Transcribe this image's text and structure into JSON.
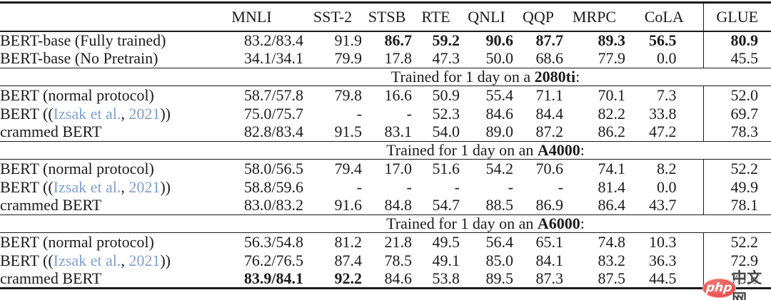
{
  "colors": {
    "text": "#1b1b1b",
    "rule": "#1a1a1a",
    "citation_link": "#7e9fd0",
    "watermark_red": "#e84f4e",
    "watermark_gray": "#454545"
  },
  "table": {
    "columns": [
      "",
      "MNLI",
      "SST-2",
      "STSB",
      "RTE",
      "QNLI",
      "QQP",
      "MRPC",
      "CoLA",
      "GLUE"
    ],
    "sections": [
      {
        "header": null,
        "rows": [
          {
            "label": "BERT-base (Fully trained)",
            "values": [
              "83.2/83.4",
              "91.9",
              "86.7",
              "59.2",
              "90.6",
              "87.7",
              "89.3",
              "56.5",
              "80.9"
            ],
            "bold": [
              2,
              3,
              4,
              5,
              6,
              7,
              8
            ]
          },
          {
            "label": "BERT-base (No Pretrain)",
            "values": [
              "34.1/34.1",
              "79.9",
              "17.8",
              "47.3",
              "50.0",
              "68.6",
              "77.9",
              "0.0",
              "45.5"
            ],
            "bold": []
          }
        ]
      },
      {
        "header": {
          "prefix": "Trained for 1 day on a ",
          "device": "2080ti",
          "suffix": ":"
        },
        "rows": [
          {
            "label": "BERT (normal protocol)",
            "values": [
              "58.7/57.8",
              "79.8",
              "16.6",
              "50.9",
              "55.4",
              "71.1",
              "70.1",
              "7.3",
              "52.0"
            ],
            "bold": []
          },
          {
            "label_parts": [
              {
                "text": "BERT ((",
                "cite": false
              },
              {
                "text": "Izsak et al.",
                "cite": true
              },
              {
                "text": ", ",
                "cite": false
              },
              {
                "text": "2021",
                "cite": true
              },
              {
                "text": "))",
                "cite": false
              }
            ],
            "values": [
              "75.0/75.7",
              "-",
              "-",
              "52.3",
              "84.6",
              "84.4",
              "82.2",
              "33.8",
              "69.7"
            ],
            "bold": []
          },
          {
            "label": "crammed BERT",
            "values": [
              "82.8/83.4",
              "91.5",
              "83.1",
              "54.0",
              "89.0",
              "87.2",
              "86.2",
              "47.2",
              "78.3"
            ],
            "bold": []
          }
        ]
      },
      {
        "header": {
          "prefix": "Trained for 1 day on an ",
          "device": "A4000",
          "suffix": ":"
        },
        "rows": [
          {
            "label": "BERT (normal protocol)",
            "values": [
              "58.0/56.5",
              "79.4",
              "17.0",
              "51.6",
              "54.2",
              "70.6",
              "74.1",
              "8.2",
              "52.2"
            ],
            "bold": []
          },
          {
            "label_parts": [
              {
                "text": "BERT ((",
                "cite": false
              },
              {
                "text": "Izsak et al.",
                "cite": true
              },
              {
                "text": ", ",
                "cite": false
              },
              {
                "text": "2021",
                "cite": true
              },
              {
                "text": "))",
                "cite": false
              }
            ],
            "values": [
              "58.8/59.6",
              "-",
              "-",
              "-",
              "-",
              "-",
              "81.4",
              "0.0",
              "49.9"
            ],
            "bold": []
          },
          {
            "label": "crammed BERT",
            "values": [
              "83.0/83.2",
              "91.6",
              "84.8",
              "54.7",
              "88.5",
              "86.9",
              "86.4",
              "43.7",
              "78.1"
            ],
            "bold": []
          }
        ]
      },
      {
        "header": {
          "prefix": "Trained for 1 day on an ",
          "device": "A6000",
          "suffix": ":"
        },
        "rows": [
          {
            "label": "BERT (normal protocol)",
            "values": [
              "56.3/54.8",
              "81.2",
              "21.8",
              "49.5",
              "56.4",
              "65.1",
              "74.8",
              "10.3",
              "52.2"
            ],
            "bold": []
          },
          {
            "label_parts": [
              {
                "text": "BERT ((",
                "cite": false
              },
              {
                "text": "Izsak et al.",
                "cite": true
              },
              {
                "text": ", ",
                "cite": false
              },
              {
                "text": "2021",
                "cite": true
              },
              {
                "text": "))",
                "cite": false
              }
            ],
            "values": [
              "76.2/76.5",
              "87.4",
              "78.5",
              "49.1",
              "85.0",
              "84.1",
              "83.2",
              "36.3",
              "72.9"
            ],
            "bold": []
          },
          {
            "label": "crammed BERT",
            "values": [
              "83.9/84.1",
              "92.2",
              "84.6",
              "53.8",
              "89.5",
              "87.3",
              "87.5",
              "44.5",
              "78.6"
            ],
            "bold": [
              0,
              1
            ]
          }
        ]
      }
    ]
  },
  "watermark": {
    "logo": "php",
    "text": "中文网"
  }
}
